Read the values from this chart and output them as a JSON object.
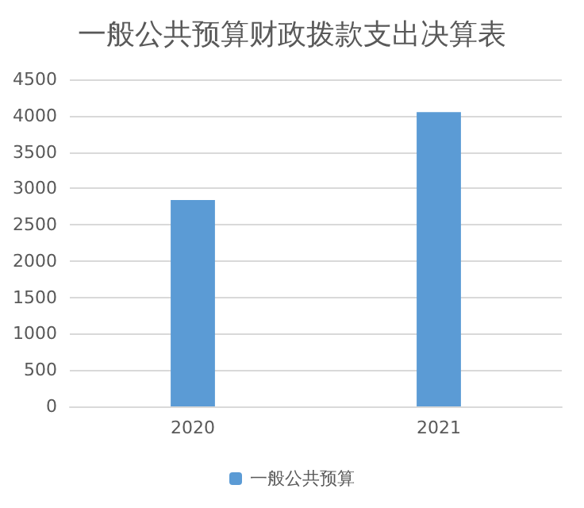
{
  "chart_data": {
    "type": "bar",
    "title": "一般公共预算财政拨款支出决算表",
    "categories": [
      "2020",
      "2021"
    ],
    "series": [
      {
        "name": "一般公共预算",
        "color": "#5b9bd5",
        "values": [
          2840,
          4050
        ]
      }
    ],
    "ylim": [
      0,
      4500
    ],
    "yticks": [
      0,
      500,
      1000,
      1500,
      2000,
      2500,
      3000,
      3500,
      4000,
      4500
    ],
    "grid": "y",
    "legend": "bottom"
  }
}
